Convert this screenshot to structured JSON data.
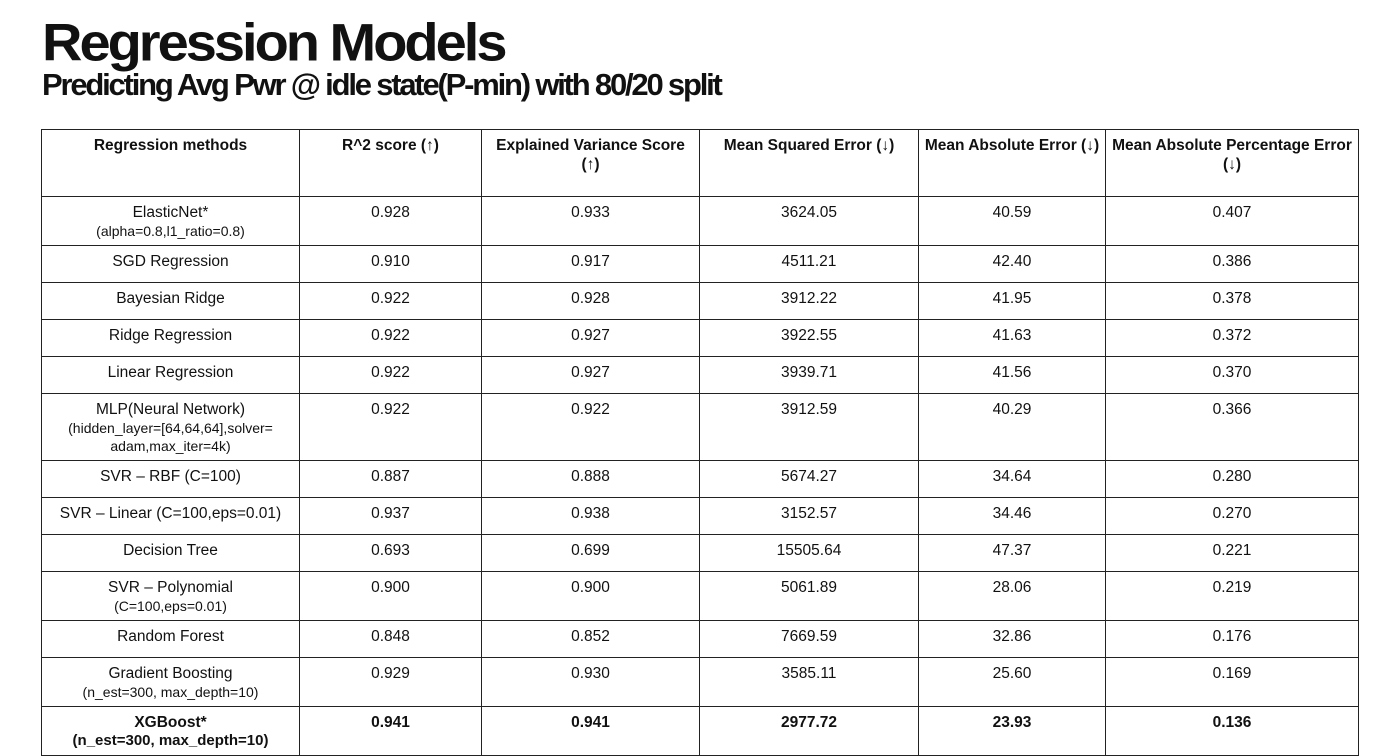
{
  "title": "Regression Models",
  "subtitle": "Predicting Avg Pwr @ idle state(P-min) with 80/20 split",
  "table": {
    "headers": [
      "Regression methods",
      "R^2 score (↑)",
      "Explained Variance Score (↑)",
      "Mean Squared Error  (↓)",
      "Mean Absolute Error (↓)",
      "Mean Absolute Percentage Error (↓)"
    ],
    "rows": [
      {
        "method": "ElasticNet*",
        "detail": "(alpha=0.8,l1_ratio=0.8)",
        "r2": "0.928",
        "evs": "0.933",
        "mse": "3624.05",
        "mae": "40.59",
        "mape": "0.407"
      },
      {
        "method": "SGD Regression",
        "detail": "",
        "r2": "0.910",
        "evs": "0.917",
        "mse": "4511.21",
        "mae": "42.40",
        "mape": "0.386"
      },
      {
        "method": "Bayesian Ridge",
        "detail": "",
        "r2": "0.922",
        "evs": "0.928",
        "mse": "3912.22",
        "mae": "41.95",
        "mape": "0.378"
      },
      {
        "method": "Ridge Regression",
        "detail": "",
        "r2": "0.922",
        "evs": "0.927",
        "mse": "3922.55",
        "mae": "41.63",
        "mape": "0.372"
      },
      {
        "method": "Linear Regression",
        "detail": "",
        "r2": "0.922",
        "evs": "0.927",
        "mse": "3939.71",
        "mae": "41.56",
        "mape": "0.370"
      },
      {
        "method": "MLP(Neural Network)",
        "detail": "(hidden_layer=[64,64,64],solver=\nadam,max_iter=4k)",
        "r2": "0.922",
        "evs": "0.922",
        "mse": "3912.59",
        "mae": "40.29",
        "mape": "0.366"
      },
      {
        "method": "SVR – RBF (C=100)",
        "detail": "",
        "r2": "0.887",
        "evs": "0.888",
        "mse": "5674.27",
        "mae": "34.64",
        "mape": "0.280"
      },
      {
        "method": "SVR – Linear (C=100,eps=0.01)",
        "detail": "",
        "r2": "0.937",
        "evs": "0.938",
        "mse": "3152.57",
        "mae": "34.46",
        "mape": "0.270"
      },
      {
        "method": "Decision Tree",
        "detail": "",
        "r2": "0.693",
        "evs": "0.699",
        "mse": "15505.64",
        "mae": "47.37",
        "mape": "0.221"
      },
      {
        "method": "SVR – Polynomial",
        "detail": "(C=100,eps=0.01)",
        "r2": "0.900",
        "evs": "0.900",
        "mse": "5061.89",
        "mae": "28.06",
        "mape": "0.219"
      },
      {
        "method": "Random Forest",
        "detail": "",
        "r2": "0.848",
        "evs": "0.852",
        "mse": "7669.59",
        "mae": "32.86",
        "mape": "0.176"
      },
      {
        "method": "Gradient Boosting",
        "detail": "(n_est=300, max_depth=10)",
        "r2": "0.929",
        "evs": "0.930",
        "mse": "3585.11",
        "mae": "25.60",
        "mape": "0.169"
      },
      {
        "method": "XGBoost*",
        "detail": "(n_est=300, max_depth=10)",
        "r2": "0.941",
        "evs": "0.941",
        "mse": "2977.72",
        "mae": "23.93",
        "mape": "0.136"
      }
    ]
  }
}
